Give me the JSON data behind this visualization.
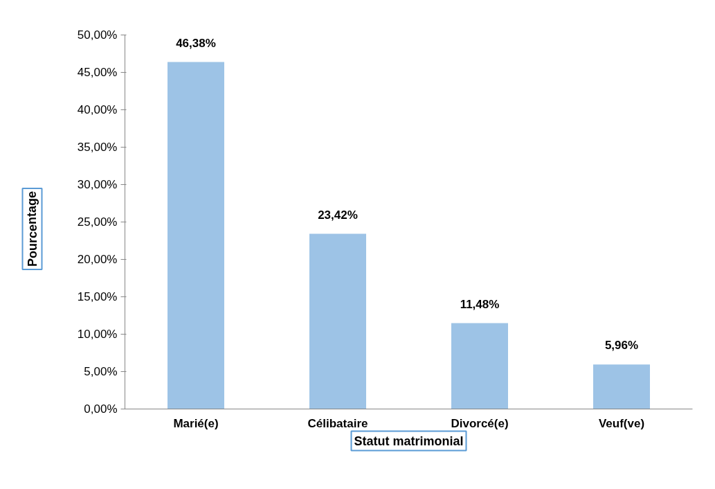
{
  "chart_data": {
    "type": "bar",
    "xlabel": "Statut matrimonial",
    "ylabel": "Pourcentage",
    "categories": [
      "Marié(e)",
      "Célibataire",
      "Divorcé(e)",
      "Veuf(ve)"
    ],
    "values": [
      46.38,
      23.42,
      11.48,
      5.96
    ],
    "value_labels": [
      "46,38%",
      "23,42%",
      "11,48%",
      "5,96%"
    ],
    "color": "#9dc3e6",
    "ylim": [
      0,
      50
    ],
    "yticks": [
      {
        "value": 0,
        "label": "0,00%"
      },
      {
        "value": 5,
        "label": "5,00%"
      },
      {
        "value": 10,
        "label": "10,00%"
      },
      {
        "value": 15,
        "label": "15,00%"
      },
      {
        "value": 20,
        "label": "20,00%"
      },
      {
        "value": 25,
        "label": "25,00%"
      },
      {
        "value": 30,
        "label": "30,00%"
      },
      {
        "value": 35,
        "label": "35,00%"
      },
      {
        "value": 40,
        "label": "40,00%"
      },
      {
        "value": 45,
        "label": "45,00%"
      },
      {
        "value": 50,
        "label": "50,00%"
      }
    ],
    "grid": false
  }
}
